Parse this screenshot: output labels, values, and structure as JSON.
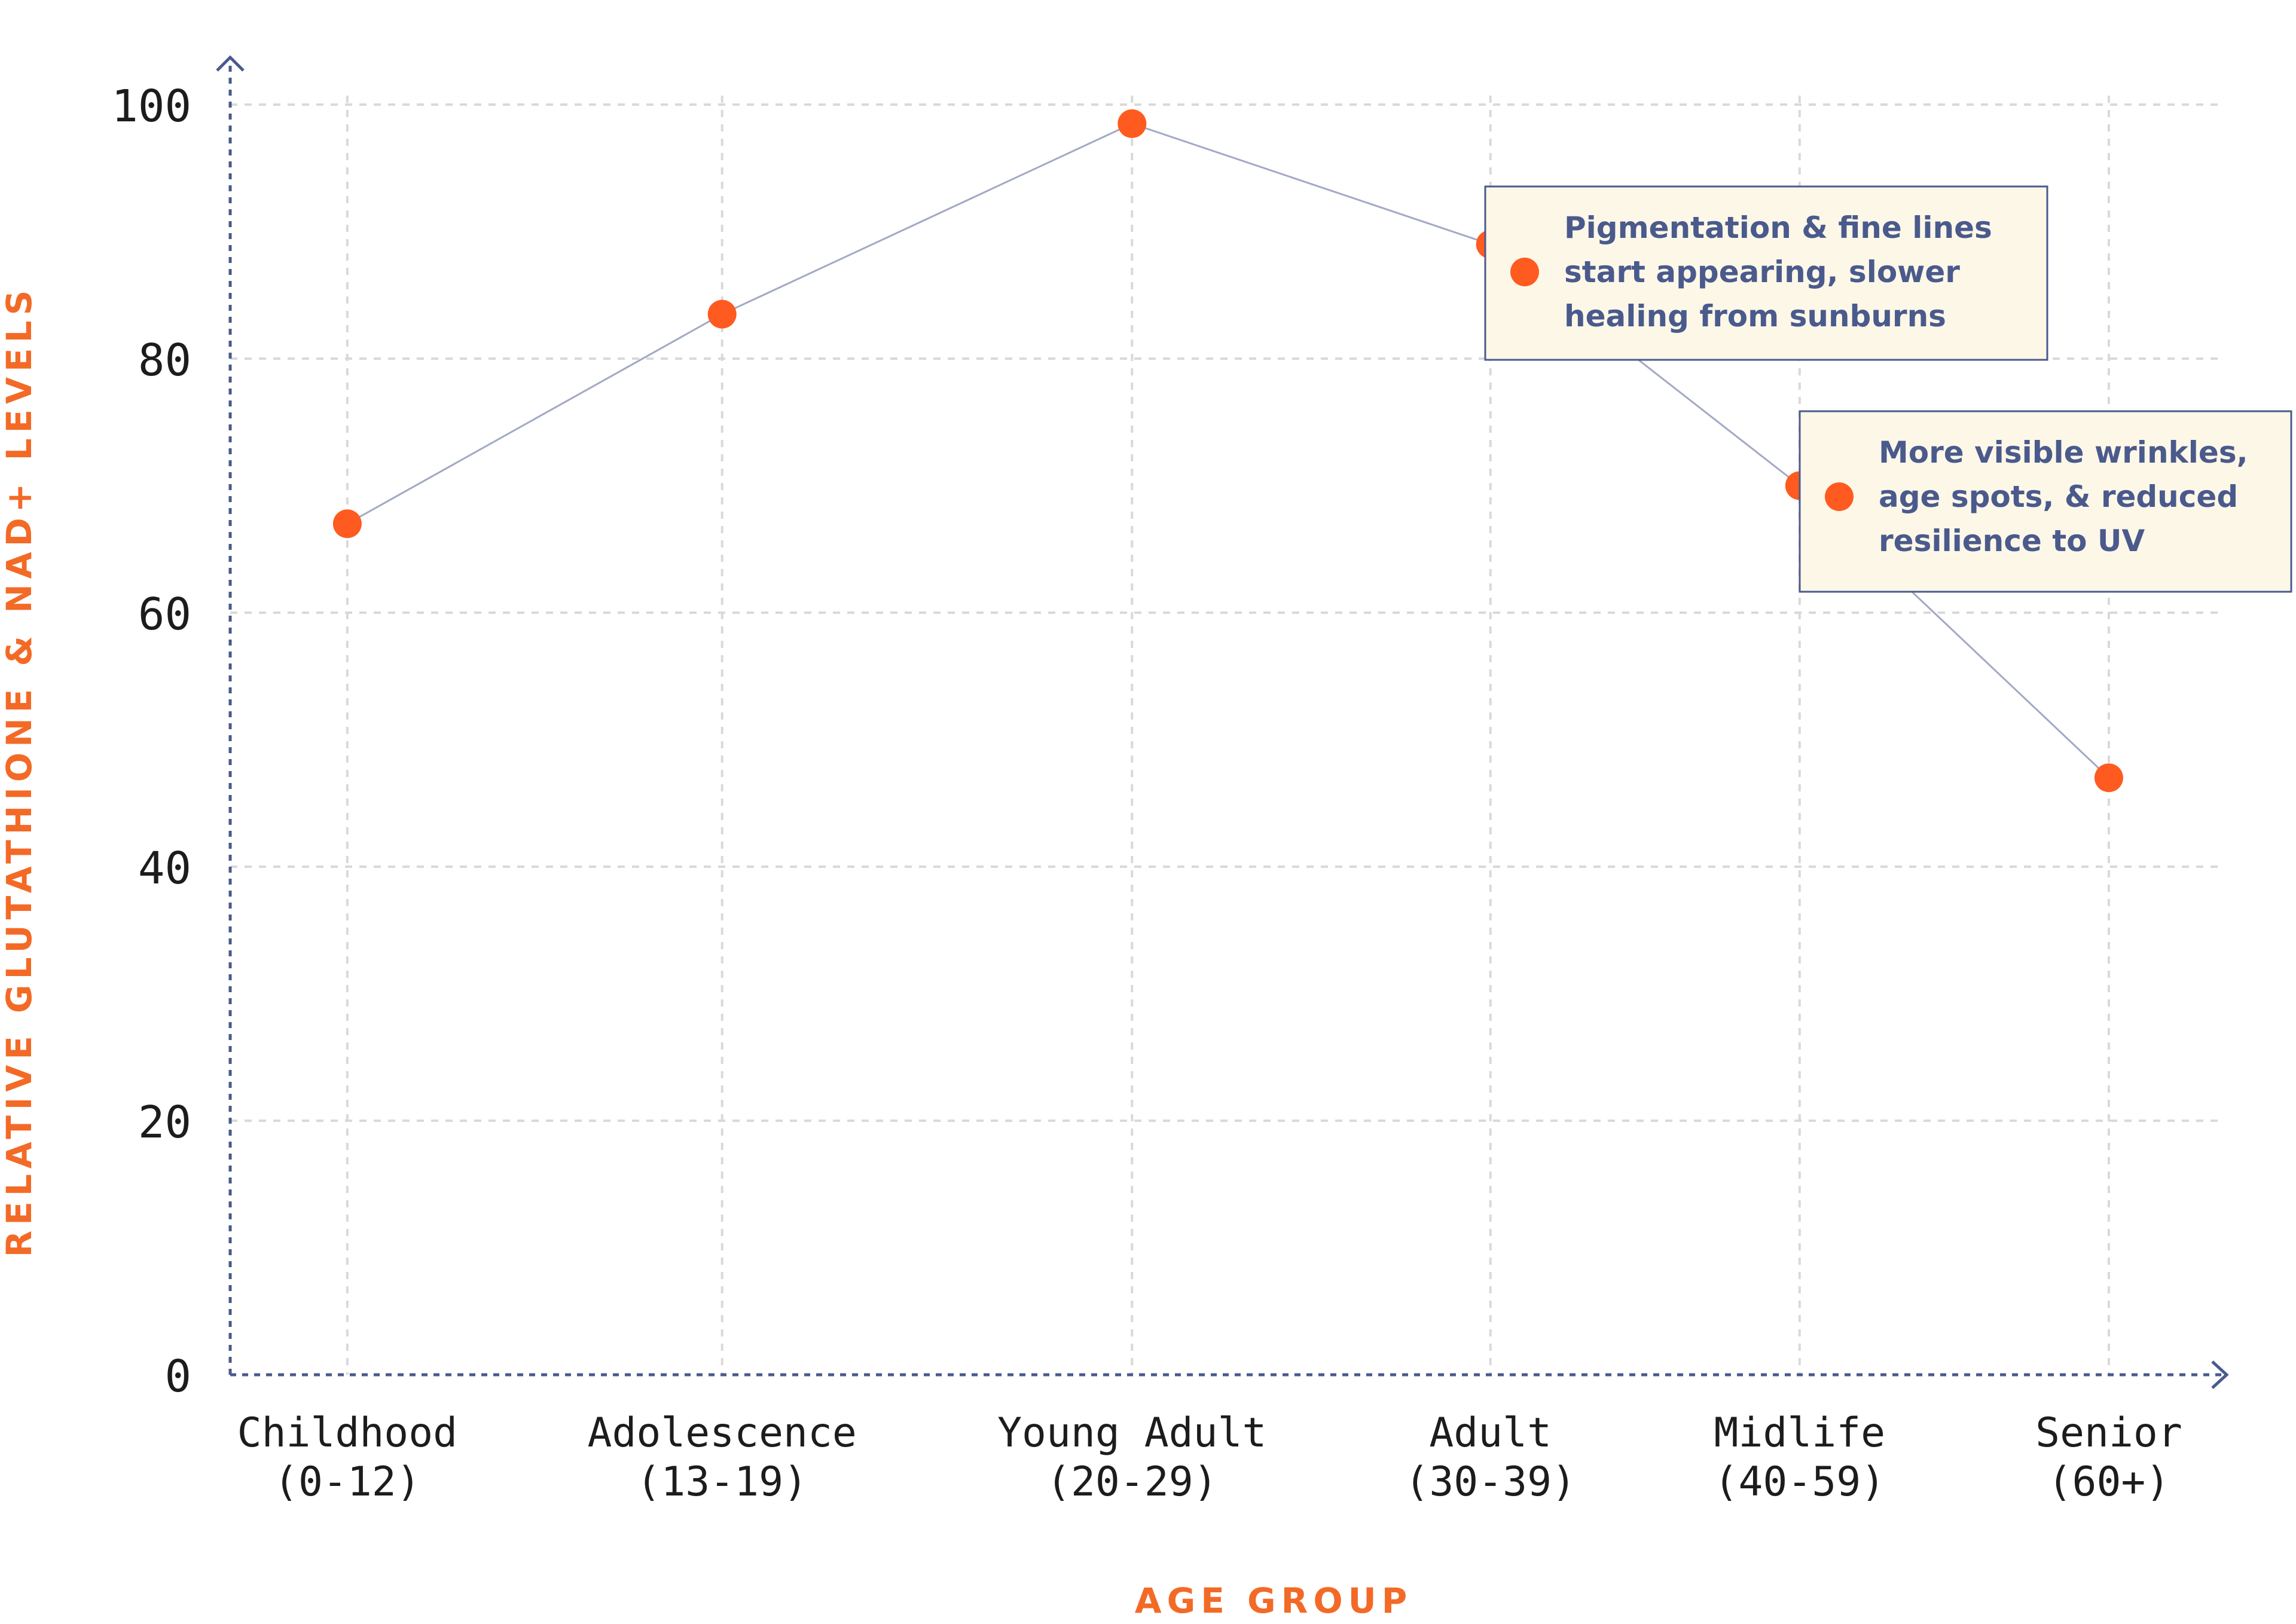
{
  "colors": {
    "axis": "#4a5a8c",
    "grid": "#d9d9d9",
    "line": "#a2a9c4",
    "point": "#ff5a1f",
    "axis_title": "#f36a26",
    "note_bg": "#fdf7e8",
    "note_border": "#4a5a8c",
    "note_text": "#4a5a8c"
  },
  "chart_data": {
    "type": "line",
    "categories": [
      [
        "Childhood",
        "(0-12)"
      ],
      [
        "Adolescence",
        "(13-19)"
      ],
      [
        "Young Adult",
        "(20-29)"
      ],
      [
        "Adult",
        "(30-39)"
      ],
      [
        "Midlife",
        "(40-59)"
      ],
      [
        "Senior",
        "(60+)"
      ]
    ],
    "category_position": [
      2.5,
      10.5,
      19.25,
      26.9,
      33.5,
      40.1
    ],
    "x_range": [
      0,
      42.5
    ],
    "values": [
      67,
      83.5,
      98.5,
      89,
      70,
      47
    ],
    "ylim": [
      0,
      100
    ],
    "yticks": [
      "0",
      "20",
      "40",
      "60",
      "80",
      "100"
    ],
    "xlabel": "AGE GROUP",
    "ylabel": "RELATIVE GLUTATHIONE & NAD+ LEVELS",
    "grid": true,
    "annotations": [
      {
        "category_index": 3,
        "lines": [
          "Pigmentation & fine lines",
          "start appearing, slower",
          "healing from sunburns"
        ]
      },
      {
        "category_index": 4,
        "lines": [
          "More visible wrinkles,",
          "age spots, & reduced",
          "resilience to UV"
        ]
      }
    ]
  }
}
